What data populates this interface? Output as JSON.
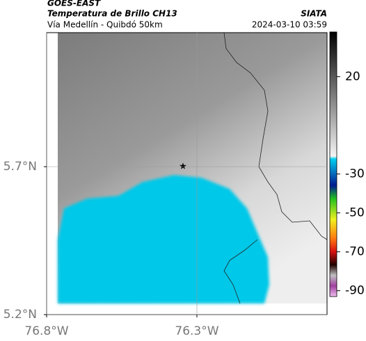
{
  "chart_data": {
    "type": "map",
    "title": "GOES-EAST",
    "subtitle": "Temperatura de Brillo CH13",
    "caption": "Vía Medellín - Quibdó 50km",
    "source": "SIATA",
    "timestamp": "2024-03-10 03:59",
    "xlim": [
      -76.8,
      -75.867
    ],
    "ylim": [
      5.2,
      6.153
    ],
    "xticks": [
      {
        "value": -76.8,
        "label": "76.8°W"
      },
      {
        "value": -76.3,
        "label": "76.3°W"
      }
    ],
    "yticks": [
      {
        "value": 5.2,
        "label": "5.2°N"
      },
      {
        "value": 5.7,
        "label": "5.7°N"
      }
    ],
    "grid": true,
    "clim": [
      -93,
      43
    ],
    "cticks": [
      20,
      -30,
      -50,
      -70,
      -90
    ]
  }
}
